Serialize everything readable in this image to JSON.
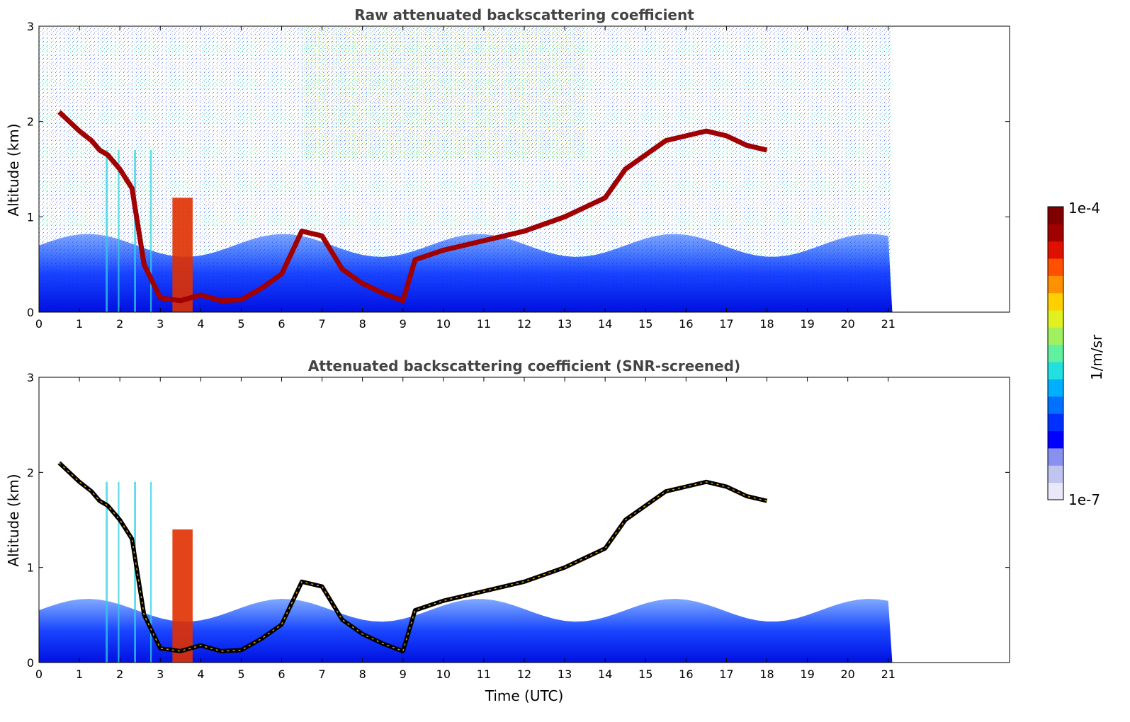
{
  "chart_data": [
    {
      "type": "heatmap",
      "title": "Raw attenuated backscattering coefficient",
      "xlabel": "",
      "ylabel": "Altitude (km)",
      "xlim": [
        0,
        24
      ],
      "ylim": [
        0,
        3
      ],
      "data_end_hour": 21.1,
      "xticks": [
        "0",
        "1",
        "2",
        "3",
        "4",
        "5",
        "6",
        "7",
        "8",
        "9",
        "10",
        "11",
        "12",
        "13",
        "14",
        "15",
        "16",
        "17",
        "18",
        "19",
        "20",
        "21"
      ],
      "yticks": [
        "0",
        "1",
        "2",
        "3"
      ],
      "cloud_layer_km": [
        [
          0.5,
          2.1
        ],
        [
          1.0,
          1.9
        ],
        [
          1.3,
          1.8
        ],
        [
          1.5,
          1.7
        ],
        [
          1.7,
          1.65
        ],
        [
          2.0,
          1.5
        ],
        [
          2.3,
          1.3
        ],
        [
          2.6,
          0.5
        ],
        [
          3.0,
          0.15
        ],
        [
          3.5,
          0.12
        ],
        [
          4.0,
          0.18
        ],
        [
          4.5,
          0.12
        ],
        [
          5.0,
          0.13
        ],
        [
          5.5,
          0.25
        ],
        [
          6.0,
          0.4
        ],
        [
          6.5,
          0.85
        ],
        [
          7.0,
          0.8
        ],
        [
          7.5,
          0.45
        ],
        [
          8.0,
          0.3
        ],
        [
          8.5,
          0.2
        ],
        [
          9.0,
          0.12
        ],
        [
          9.3,
          0.55
        ],
        [
          10.0,
          0.65
        ],
        [
          11.0,
          0.75
        ],
        [
          12.0,
          0.85
        ],
        [
          13.0,
          1.0
        ],
        [
          13.5,
          1.1
        ],
        [
          14.0,
          1.2
        ],
        [
          14.5,
          1.5
        ],
        [
          15.0,
          1.65
        ],
        [
          15.5,
          1.8
        ],
        [
          16.0,
          1.85
        ],
        [
          16.5,
          1.9
        ],
        [
          17.0,
          1.85
        ],
        [
          17.5,
          1.75
        ],
        [
          18.0,
          1.7
        ]
      ]
    },
    {
      "type": "heatmap",
      "title": "Attenuated backscattering coefficient (SNR-screened)",
      "xlabel": "Time (UTC)",
      "ylabel": "Altitude (km)",
      "xlim": [
        0,
        24
      ],
      "ylim": [
        0,
        3
      ],
      "data_end_hour": 21.1,
      "xticks": [
        "0",
        "1",
        "2",
        "3",
        "4",
        "5",
        "6",
        "7",
        "8",
        "9",
        "10",
        "11",
        "12",
        "13",
        "14",
        "15",
        "16",
        "17",
        "18",
        "19",
        "20",
        "21"
      ],
      "yticks": [
        "0",
        "1",
        "2",
        "3"
      ]
    }
  ],
  "colorbar": {
    "max_label": "1e-4",
    "min_label": "1e-7",
    "unit": "1/m/sr",
    "colormap": [
      "#e8e8f8",
      "#c0c4f0",
      "#8890f0",
      "#0000ff",
      "#0030ff",
      "#0070ff",
      "#00b0ff",
      "#20e0e0",
      "#60f0a0",
      "#a0f060",
      "#e0f020",
      "#ffd000",
      "#ff9000",
      "#ff5000",
      "#e01000",
      "#a00000",
      "#800000"
    ]
  }
}
